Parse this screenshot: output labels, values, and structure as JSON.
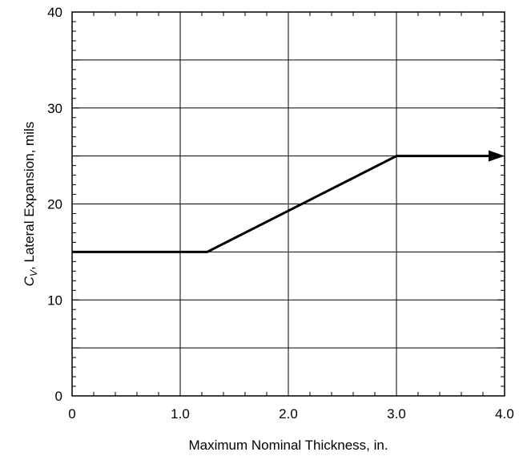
{
  "chart_data": {
    "type": "line",
    "xlabel": "Maximum Nominal Thickness, in.",
    "ylabel_symbol": "C",
    "ylabel_subscript": "V",
    "ylabel_rest": ", Lateral Expansion, mils",
    "xlim": [
      0,
      4.0
    ],
    "ylim": [
      0,
      40
    ],
    "x_ticks": [
      0,
      1.0,
      2.0,
      3.0,
      4.0
    ],
    "x_tick_labels": [
      "0",
      "1.0",
      "2.0",
      "3.0",
      "4.0"
    ],
    "y_ticks": [
      0,
      10,
      20,
      30,
      40
    ],
    "y_tick_labels": [
      "0",
      "10",
      "20",
      "30",
      "40"
    ],
    "y_gridlines": [
      5,
      10,
      15,
      20,
      25,
      30,
      35
    ],
    "x_gridlines": [
      1.0,
      2.0,
      3.0
    ],
    "x_minor_step": 0.2,
    "y_minor_step": 1,
    "grid": true,
    "series": [
      {
        "x": [
          0,
          1.25,
          3.0,
          4.0
        ],
        "y": [
          15,
          15,
          25,
          25
        ],
        "end_arrow": true,
        "color": "#000000"
      }
    ]
  }
}
